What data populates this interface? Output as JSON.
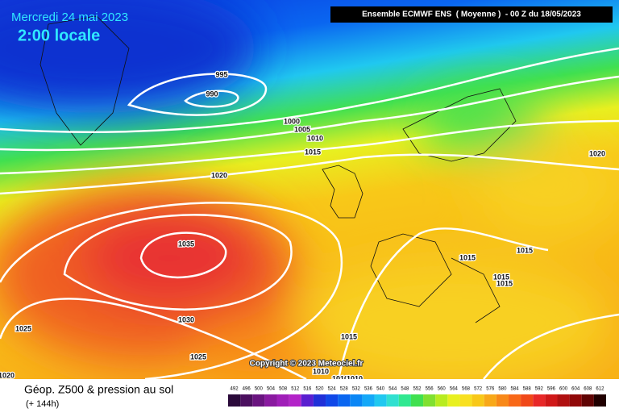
{
  "header": {
    "date": "Mercredi 24 mai 2023",
    "time": "2:00 locale",
    "model": "Ensemble ECMWF ENS  ( Moyenne )  - 00 Z du 18/05/2023"
  },
  "isobar_labels": [
    "995",
    "990",
    "1000",
    "1005",
    "1010",
    "1015",
    "1020",
    "1020",
    "1035",
    "1030",
    "1025",
    "1025",
    "1015",
    "1015",
    "1015",
    "1015",
    "1015",
    "1010",
    "1010",
    "1010",
    "1020"
  ],
  "copyright": "Copyright © 2023 Meteociel.fr",
  "footer": {
    "title": "Géop. Z500 & pression au sol",
    "subtitle": "(+ 144h)"
  },
  "colorbar": {
    "labels": [
      492,
      496,
      500,
      504,
      508,
      512,
      516,
      520,
      524,
      528,
      532,
      536,
      540,
      544,
      548,
      552,
      556,
      560,
      564,
      568,
      572,
      576,
      580,
      584,
      588,
      592,
      596,
      600,
      604,
      608,
      612
    ],
    "colors": [
      "#2a0a3a",
      "#4b0f5f",
      "#6a1480",
      "#8a1aa0",
      "#a01fb8",
      "#b323c8",
      "#5a1fd0",
      "#2030d8",
      "#1048e8",
      "#0a66f0",
      "#0a86f5",
      "#14a8f8",
      "#20c8f0",
      "#30e0d0",
      "#30e890",
      "#40e050",
      "#80e030",
      "#b8ec20",
      "#e8f020",
      "#f8e020",
      "#f8c818",
      "#f8a818",
      "#f88818",
      "#f86818",
      "#f04818",
      "#e82828",
      "#d01818",
      "#b01010",
      "#900808",
      "#600404",
      "#200000"
    ]
  }
}
